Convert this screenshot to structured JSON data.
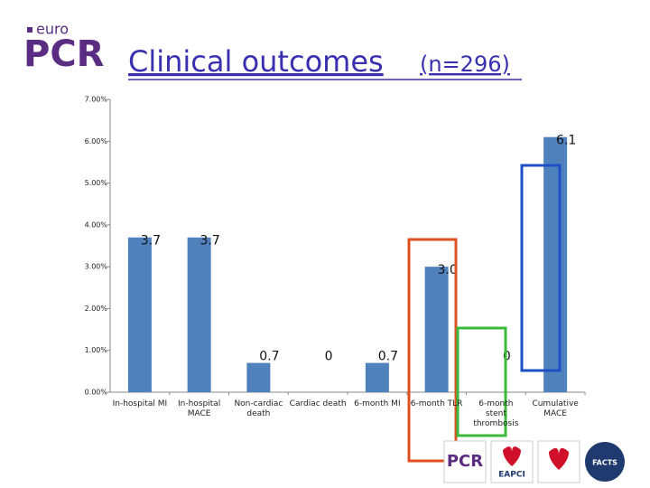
{
  "header": {
    "logo_small": "euro",
    "logo_big": "PCR"
  },
  "chart_data": {
    "type": "bar",
    "title": "Clinical outcomes",
    "title_suffix": "(n=296)",
    "categories": [
      "In-hospital MI",
      "In-hospital MACE",
      "Non-cardiac death",
      "Cardiac death",
      "6-month MI",
      "6-month TLR",
      "6-month stent thrombosis",
      "Cumulative MACE"
    ],
    "values": [
      3.7,
      3.7,
      0.7,
      0,
      0.7,
      3.0,
      0,
      6.1
    ],
    "value_labels": [
      "3.7",
      "3.7",
      "0.7",
      "0",
      "0.7",
      "3.0",
      "0",
      "6.1"
    ],
    "color": "#4f81bd",
    "ylim": [
      0,
      7
    ],
    "yticks": [
      {
        "value": 0,
        "label": "0.00%"
      },
      {
        "value": 1,
        "label": "1.00%"
      },
      {
        "value": 2,
        "label": "2.00%"
      },
      {
        "value": 3,
        "label": "3.00%"
      },
      {
        "value": 4,
        "label": "4.00%"
      },
      {
        "value": 5,
        "label": "5.00%"
      },
      {
        "value": 6,
        "label": "6.00%"
      },
      {
        "value": 7,
        "label": "7.00%"
      }
    ]
  },
  "footer": {
    "logos": [
      "PCR",
      "EAPCI",
      "FACTS"
    ]
  }
}
